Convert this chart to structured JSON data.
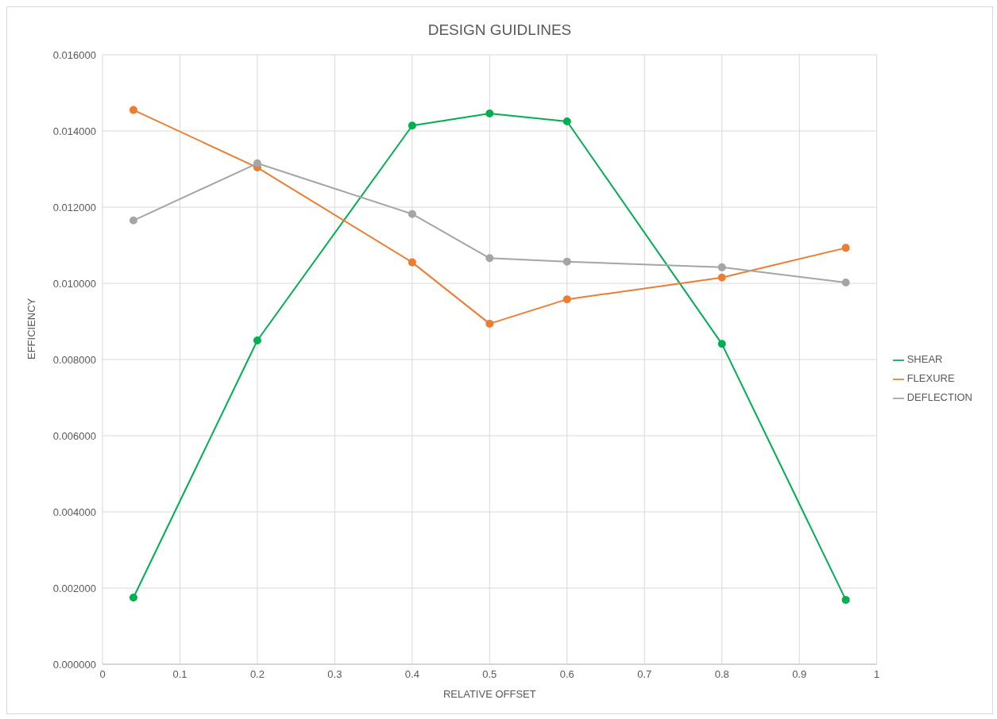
{
  "chart_data": {
    "type": "line",
    "title": "DESIGN GUIDLINES",
    "xlabel": "RELATIVE OFFSET",
    "ylabel": "EFFICIENCY",
    "x": [
      0.04,
      0.2,
      0.4,
      0.5,
      0.6,
      0.8,
      0.96
    ],
    "series": [
      {
        "name": "SHEAR",
        "color": "#00b050",
        "values": [
          0.00175,
          0.0085,
          0.01414,
          0.01446,
          0.01425,
          0.00841,
          0.00169
        ]
      },
      {
        "name": "FLEXURE",
        "color": "#ed7d31",
        "values": [
          0.01455,
          0.01304,
          0.01055,
          0.00894,
          0.00958,
          0.01015,
          0.01093
        ]
      },
      {
        "name": "DEFLECTION",
        "color": "#a5a5a5",
        "values": [
          0.01165,
          0.01315,
          0.01182,
          0.01066,
          0.01057,
          0.01042,
          0.01002
        ]
      }
    ],
    "xlim": [
      0,
      1
    ],
    "xticks": [
      0,
      0.1,
      0.2,
      0.3,
      0.4,
      0.5,
      0.6,
      0.7,
      0.8,
      0.9,
      1
    ],
    "ylim": [
      0,
      0.016
    ],
    "yticks": [
      {
        "value": 0,
        "label": "0.000000"
      },
      {
        "value": 0.002,
        "label": "0.002000"
      },
      {
        "value": 0.004,
        "label": "0.004000"
      },
      {
        "value": 0.006,
        "label": "0.006000"
      },
      {
        "value": 0.008,
        "label": "0.008000"
      },
      {
        "value": 0.01,
        "label": "0.010000"
      },
      {
        "value": 0.012,
        "label": "0.012000"
      },
      {
        "value": 0.014,
        "label": "0.014000"
      },
      {
        "value": 0.016,
        "label": "0.016000"
      }
    ],
    "grid": true,
    "legend": "right",
    "marker": "circle",
    "line_style": "solid"
  }
}
